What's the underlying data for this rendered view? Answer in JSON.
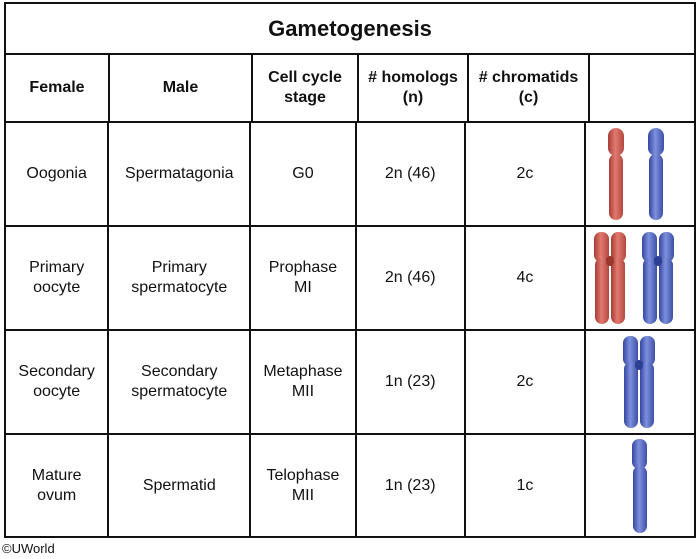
{
  "title": "Gametogenesis",
  "headers": [
    "Female",
    "Male",
    "Cell cycle\nstage",
    "# homologs\n(n)",
    "# chromatids\n(c)",
    ""
  ],
  "rows": [
    {
      "female": "Oogonia",
      "male": "Spermatagonia",
      "stage": "G0",
      "homologs": "2n (46)",
      "chromatids": "2c"
    },
    {
      "female": "Primary\noocyte",
      "male": "Primary\nspermatocyte",
      "stage": "Prophase\nMI",
      "homologs": "2n (46)",
      "chromatids": "4c"
    },
    {
      "female": "Secondary\noocyte",
      "male": "Secondary\nspermatocyte",
      "stage": "Metaphase\nMII",
      "homologs": "1n (23)",
      "chromatids": "2c"
    },
    {
      "female": "Mature\novum",
      "male": "Spermatid",
      "stage": "Telophase\nMII",
      "homologs": "1n (23)",
      "chromatids": "1c"
    }
  ],
  "colors": {
    "red_chromosome": "#d4685e",
    "blue_chromosome": "#5a6fc4"
  },
  "copyright": "©UWorld"
}
